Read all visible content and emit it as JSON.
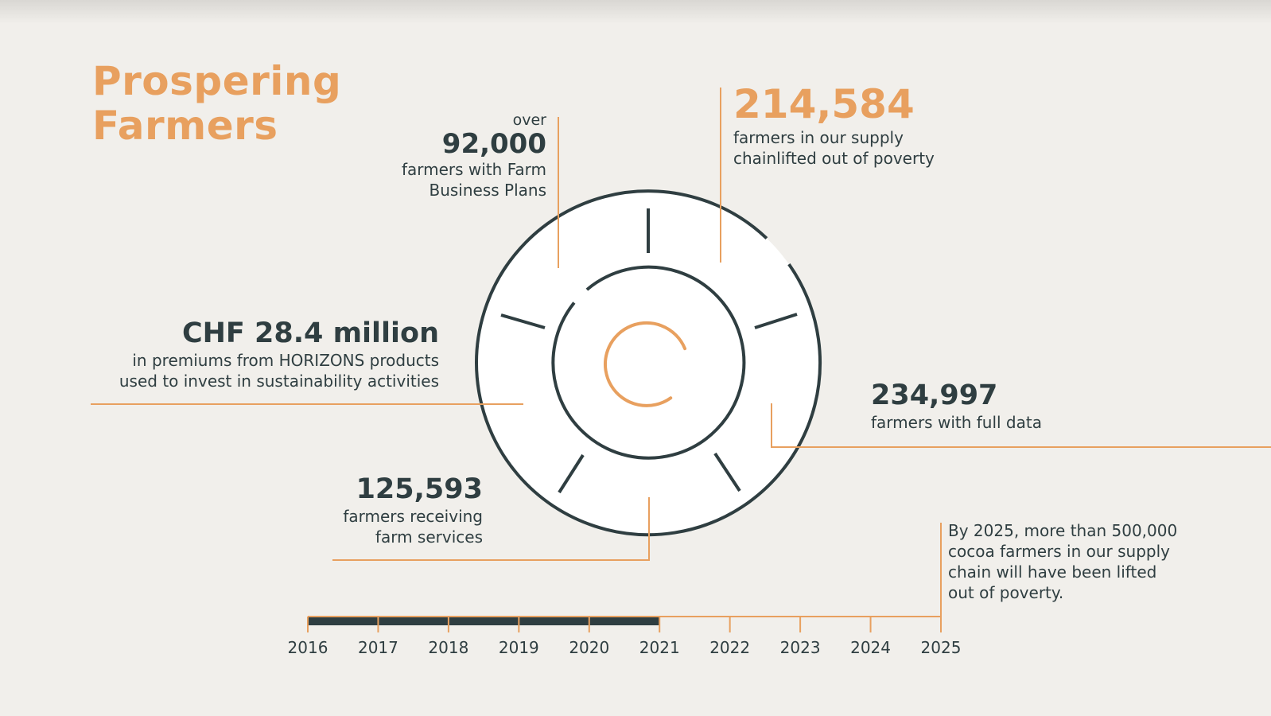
{
  "title": {
    "line1": "Prospering",
    "line2": "Farmers"
  },
  "stats": {
    "business_plans": {
      "prefix": "over",
      "value": "92,000",
      "desc_line1": "farmers with Farm",
      "desc_line2": "Business Plans"
    },
    "lifted": {
      "value": "214,584",
      "desc_line1": "farmers in our supply",
      "desc_line2": "chainlifted out of poverty"
    },
    "premiums": {
      "value": "CHF 28.4 million",
      "desc_line1": "in premiums from HORIZONS products",
      "desc_line2": "used to invest in sustainability activities"
    },
    "full_data": {
      "value": "234,997",
      "desc_line1": "farmers with full data"
    },
    "farm_services": {
      "value": "125,593",
      "desc_line1": "farmers receiving",
      "desc_line2": "farm services"
    }
  },
  "target_note": {
    "line1": "By 2025, more than 500,000",
    "line2": "cocoa farmers in our supply",
    "line3": "chain will have been lifted",
    "line4": "out of poverty."
  },
  "timeline": {
    "years": [
      "2016",
      "2017",
      "2018",
      "2019",
      "2020",
      "2021",
      "2022",
      "2023",
      "2024",
      "2025"
    ],
    "progress_start_year": "2016",
    "progress_end_year": "2021"
  },
  "colors": {
    "accent": "#e8a05f",
    "dark": "#2f3e41",
    "background": "#f1efeb",
    "circle_fill": "#ffffff"
  }
}
